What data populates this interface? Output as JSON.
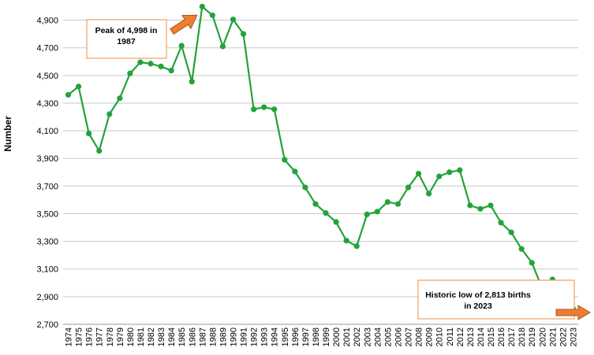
{
  "chart_data": {
    "type": "line",
    "ylabel": "Number",
    "xlabel": "",
    "ylim": [
      2700,
      5000
    ],
    "yticks": [
      2700,
      2900,
      3100,
      3300,
      3500,
      3700,
      3900,
      4100,
      4300,
      4500,
      4700,
      4900
    ],
    "ytick_labels": [
      "2,700",
      "2,900",
      "3,100",
      "3,300",
      "3,500",
      "3,700",
      "3,900",
      "4,100",
      "4,300",
      "4,500",
      "4,700",
      "4,900"
    ],
    "grid": "horizontal",
    "x": [
      "1974",
      "1975",
      "1976",
      "1977",
      "1978",
      "1979",
      "1980",
      "1981",
      "1982",
      "1983",
      "1984",
      "1985",
      "1986",
      "1987",
      "1988",
      "1989",
      "1990",
      "1991",
      "1992",
      "1993",
      "1994",
      "1995",
      "1996",
      "1997",
      "1998",
      "1999",
      "2000",
      "2001",
      "2002",
      "2003",
      "2004",
      "2005",
      "2006",
      "2007",
      "2008",
      "2009",
      "2010",
      "2011",
      "2012",
      "2013",
      "2014",
      "2015",
      "2016",
      "2017",
      "2018",
      "2019",
      "2020",
      "2021",
      "2022",
      "2023"
    ],
    "series": [
      {
        "name": "",
        "color": "#22a33a",
        "values": [
          4360,
          4420,
          4080,
          3955,
          4220,
          4335,
          4515,
          4595,
          4585,
          4565,
          4535,
          4715,
          4455,
          4998,
          4935,
          4710,
          4905,
          4800,
          4255,
          4270,
          4255,
          3890,
          3805,
          3690,
          3570,
          3505,
          3440,
          3305,
          3265,
          3495,
          3515,
          3585,
          3570,
          3690,
          3790,
          3645,
          3770,
          3800,
          3815,
          3560,
          3535,
          3560,
          3435,
          3365,
          3245,
          3145,
          2960,
          3025,
          2880,
          2813
        ]
      }
    ],
    "annotations": [
      {
        "text_lines": [
          "Peak of 4,998 in",
          "1987"
        ],
        "border_color": "#f0a060",
        "arrow_color": "#ee7d31"
      },
      {
        "text_lines": [
          "Historic low of 2,813 births",
          "in 2023"
        ],
        "border_color": "#f0a060",
        "arrow_color": "#ee7d31"
      }
    ]
  }
}
